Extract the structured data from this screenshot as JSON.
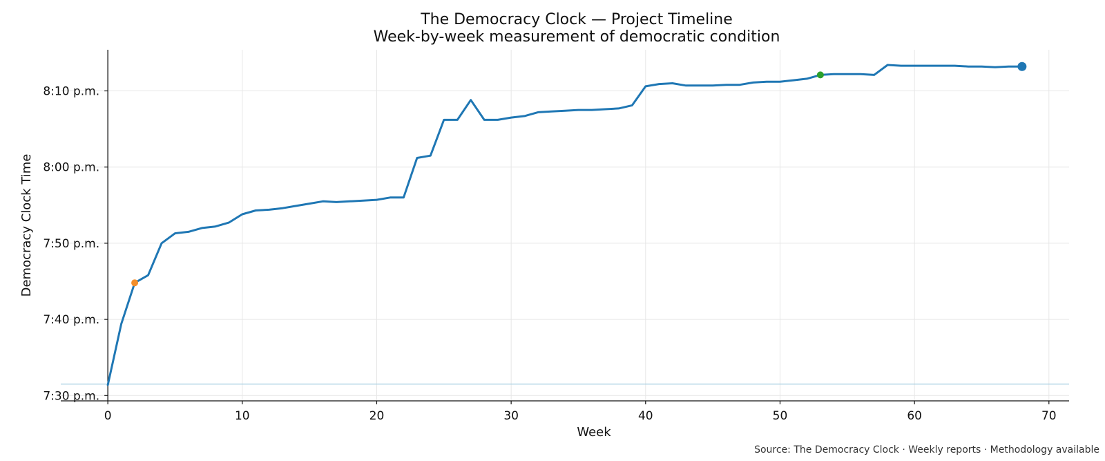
{
  "chart_data": {
    "type": "line",
    "title": "The Democracy Clock — Project Timeline",
    "subtitle": "Week-by-week measurement of democratic condition",
    "xlabel": "Week",
    "ylabel": "Democracy Clock Time",
    "source": "Source: The Democracy Clock · Weekly reports · Methodology available",
    "xlim": [
      -3.5,
      71.5
    ],
    "ylim_minutes": [
      1409.3,
      1455.4
    ],
    "x_ticks": [
      0,
      10,
      20,
      30,
      40,
      50,
      60,
      70
    ],
    "y_ticks": [
      {
        "minutes": 1410,
        "label": "7:30 p.m."
      },
      {
        "minutes": 1420,
        "label": "7:40 p.m."
      },
      {
        "minutes": 1430,
        "label": "7:50 p.m."
      },
      {
        "minutes": 1440,
        "label": "8:00 p.m."
      },
      {
        "minutes": 1450,
        "label": "8:10 p.m."
      }
    ],
    "grid": true,
    "baseline_minutes": 1411.5,
    "series": [
      {
        "color": "#1f77b4",
        "x": [
          0,
          1,
          2,
          3,
          4,
          5,
          6,
          7,
          8,
          9,
          10,
          11,
          12,
          13,
          14,
          15,
          16,
          17,
          18,
          19,
          20,
          21,
          22,
          23,
          24,
          25,
          26,
          27,
          28,
          29,
          30,
          31,
          32,
          33,
          34,
          35,
          36,
          37,
          38,
          39,
          40,
          41,
          42,
          43,
          44,
          45,
          46,
          47,
          48,
          49,
          50,
          51,
          52,
          53,
          54,
          55,
          56,
          57,
          58,
          59,
          60,
          61,
          62,
          63,
          64,
          65,
          66,
          67,
          68
        ],
        "y": [
          1411.4,
          1419.4,
          1424.8,
          1425.8,
          1430.0,
          1431.3,
          1431.5,
          1432.0,
          1432.2,
          1432.7,
          1433.8,
          1434.3,
          1434.4,
          1434.6,
          1434.9,
          1435.2,
          1435.5,
          1435.4,
          1435.5,
          1435.6,
          1435.7,
          1436.0,
          1436.0,
          1441.2,
          1441.5,
          1446.2,
          1446.2,
          1448.8,
          1446.2,
          1446.2,
          1446.5,
          1446.7,
          1447.2,
          1447.3,
          1447.4,
          1447.5,
          1447.5,
          1447.6,
          1447.7,
          1448.1,
          1450.6,
          1450.9,
          1451.0,
          1450.7,
          1450.7,
          1450.7,
          1450.8,
          1450.8,
          1451.1,
          1451.2,
          1451.2,
          1451.4,
          1451.6,
          1452.1,
          1452.2,
          1452.2,
          1452.2,
          1452.1,
          1453.4,
          1453.3,
          1453.3,
          1453.3,
          1453.3,
          1453.3,
          1453.2,
          1453.2,
          1453.1,
          1453.2,
          1453.2
        ]
      }
    ],
    "markers": [
      {
        "x": 2,
        "y": 1424.8,
        "color": "#f28e2b"
      },
      {
        "x": 53,
        "y": 1452.1,
        "color": "#2ca02c"
      },
      {
        "x": 68,
        "y": 1453.2,
        "color": "#1f77b4",
        "emphasis": "large"
      }
    ],
    "colors": {
      "line": "#1f77b4",
      "grid": "#e6e6e6",
      "baseline": "#a6cfe3",
      "axis": "#111111"
    }
  }
}
